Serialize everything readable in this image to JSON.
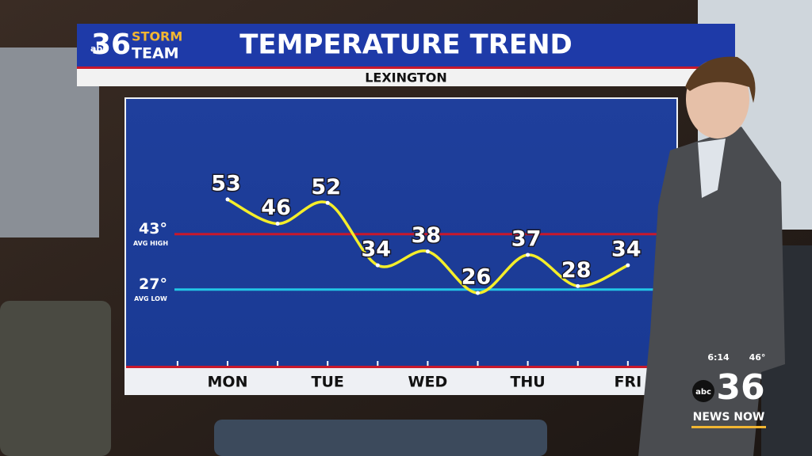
{
  "header": {
    "logo_number": "36",
    "logo_top": "STORM",
    "logo_bottom": "TEAM",
    "logo_network": "abc",
    "title": "TEMPERATURE TREND",
    "location": "LEXINGTON"
  },
  "overlay": {
    "time": "6:14",
    "temperature": "46°",
    "network": "abc",
    "channel": "36",
    "brand": "NEWS NOW"
  },
  "chart_data": {
    "type": "line",
    "categories": [
      "MON",
      null,
      "TUE",
      null,
      "WED",
      null,
      "THU",
      null,
      "FRI"
    ],
    "series": [
      {
        "color": "#f4ee2a",
        "values": [
          53,
          46,
          52,
          34,
          38,
          26,
          37,
          28,
          34
        ]
      }
    ],
    "ylim": [
      5,
      82
    ],
    "reference_lines": [
      {
        "value": 43,
        "label": "43°",
        "name": "AVG HIGH",
        "color": "#c8182c"
      },
      {
        "value": 27,
        "label": "27°",
        "name": "AVG LOW",
        "color": "#22c6e6"
      }
    ]
  }
}
